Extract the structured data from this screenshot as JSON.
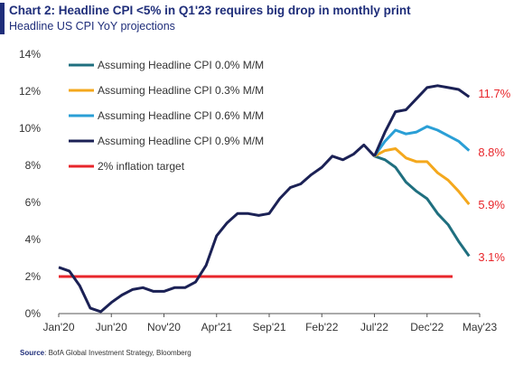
{
  "header": {
    "title": "Chart 2: Headline CPI <5% in Q1'23  requires big drop in monthly print",
    "subtitle": "Headline US CPI YoY projections"
  },
  "footer": {
    "source_label": "Source",
    "source_text": ": BofA Global Investment Strategy, Bloomberg"
  },
  "colors": {
    "accent": "#1f2e7a",
    "series_0_0": "#1f6f7f",
    "series_0_3": "#f4a81d",
    "series_0_6": "#2a9fd6",
    "series_0_9": "#1b2155",
    "target": "#e8262b",
    "end_label": "#e8262b"
  },
  "chart_data": {
    "type": "line",
    "x_ticks": [
      "Jan'20",
      "Jun'20",
      "Nov'20",
      "Apr'21",
      "Sep'21",
      "Feb'22",
      "Jul'22",
      "Dec'22",
      "May'23"
    ],
    "y_ticks": [
      "0%",
      "2%",
      "4%",
      "6%",
      "8%",
      "10%",
      "12%",
      "14%"
    ],
    "ylim": [
      0,
      14
    ],
    "xlim": [
      "2020-01",
      "2023-05"
    ],
    "legend_position": "top-left",
    "grid": false,
    "history": {
      "name": "Headline US CPI YoY",
      "x": [
        "2020-01",
        "2020-02",
        "2020-03",
        "2020-04",
        "2020-05",
        "2020-06",
        "2020-07",
        "2020-08",
        "2020-09",
        "2020-10",
        "2020-11",
        "2020-12",
        "2021-01",
        "2021-02",
        "2021-03",
        "2021-04",
        "2021-05",
        "2021-06",
        "2021-07",
        "2021-08",
        "2021-09",
        "2021-10",
        "2021-11",
        "2021-12",
        "2022-01",
        "2022-02",
        "2022-03",
        "2022-04",
        "2022-05",
        "2022-06",
        "2022-07"
      ],
      "values": [
        2.5,
        2.3,
        1.5,
        0.3,
        0.1,
        0.6,
        1.0,
        1.3,
        1.4,
        1.2,
        1.2,
        1.4,
        1.4,
        1.7,
        2.6,
        4.2,
        4.9,
        5.4,
        5.4,
        5.3,
        5.4,
        6.2,
        6.8,
        7.0,
        7.5,
        7.9,
        8.5,
        8.3,
        8.6,
        9.1,
        8.5
      ]
    },
    "projection_x": [
      "2022-07",
      "2022-08",
      "2022-09",
      "2022-10",
      "2022-11",
      "2022-12",
      "2023-01",
      "2023-02",
      "2023-03",
      "2023-04"
    ],
    "series": [
      {
        "name": "Assuming Headline CPI 0.0% M/M",
        "color_key": "series_0_0",
        "values": [
          8.5,
          8.3,
          7.9,
          7.1,
          6.6,
          6.2,
          5.4,
          4.8,
          3.9,
          3.1
        ],
        "end_label": "3.1%"
      },
      {
        "name": "Assuming Headline CPI 0.3% M/M",
        "color_key": "series_0_3",
        "values": [
          8.5,
          8.8,
          8.9,
          8.4,
          8.2,
          8.2,
          7.6,
          7.2,
          6.6,
          5.9
        ],
        "end_label": "5.9%"
      },
      {
        "name": "Assuming Headline CPI 0.6% M/M",
        "color_key": "series_0_6",
        "values": [
          8.5,
          9.3,
          9.9,
          9.7,
          9.8,
          10.1,
          9.9,
          9.6,
          9.3,
          8.8
        ],
        "end_label": "8.8%"
      },
      {
        "name": "Assuming Headline CPI 0.9% M/M",
        "color_key": "series_0_9",
        "values": [
          8.5,
          9.8,
          10.9,
          11.0,
          11.6,
          12.2,
          12.3,
          12.2,
          12.1,
          11.7
        ],
        "end_label": "11.7%"
      }
    ],
    "target": {
      "name": "2% inflation target",
      "value": 2,
      "color_key": "target"
    }
  }
}
